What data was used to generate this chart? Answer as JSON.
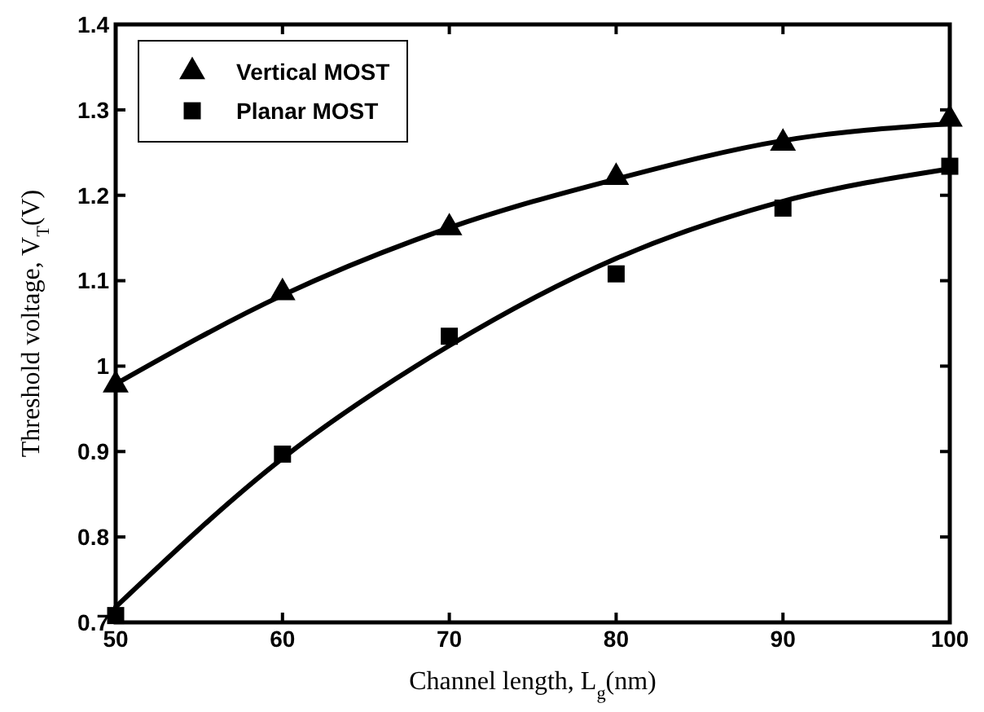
{
  "chart_data": {
    "type": "scatter",
    "xlabel": "Channel length, L$_{g}$(nm)",
    "ylabel": "Threshold voltage, V$_{T}$(V)",
    "xlim": [
      50,
      100
    ],
    "xticks": [
      50,
      60,
      70,
      80,
      90,
      100
    ],
    "ylim": [
      0.7,
      1.4
    ],
    "yticks": [
      0.7,
      0.8,
      0.9,
      1,
      1.1,
      1.2,
      1.3,
      1.4
    ],
    "grid": false,
    "legend": "top left",
    "series": [
      {
        "type": "line",
        "color": "#000000",
        "x": [
          50,
          60,
          70,
          80,
          90,
          100
        ],
        "values": [
          0.979,
          1.083,
          1.162,
          1.219,
          1.264,
          1.284
        ],
        "marker": "none",
        "line_style": "solid"
      },
      {
        "type": "line",
        "color": "#000000",
        "x": [
          50,
          60,
          70,
          80,
          90,
          100
        ],
        "values": [
          0.718,
          0.892,
          1.024,
          1.126,
          1.193,
          1.231
        ],
        "marker": "none",
        "line_style": "solid"
      },
      {
        "name": "Vertical MOST",
        "color": "#000000",
        "x": [
          50,
          60,
          70,
          80,
          90,
          100
        ],
        "values": [
          0.978,
          1.086,
          1.162,
          1.221,
          1.261,
          1.289
        ],
        "marker": "triangle"
      },
      {
        "name": "Planar MOST",
        "color": "#000000",
        "x": [
          50,
          60,
          70,
          80,
          90,
          100
        ],
        "values": [
          0.708,
          0.897,
          1.035,
          1.108,
          1.185,
          1.234
        ],
        "marker": "square"
      }
    ]
  }
}
